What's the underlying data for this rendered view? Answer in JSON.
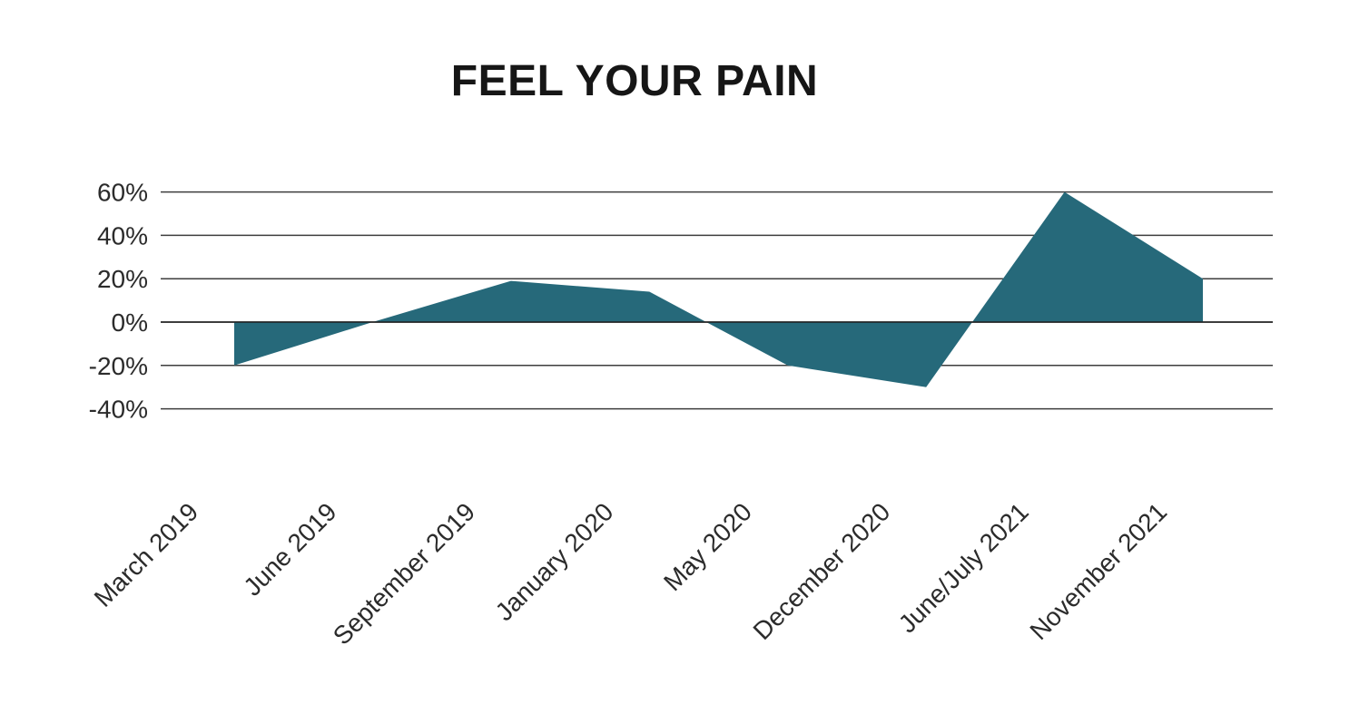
{
  "chart_data": {
    "type": "area",
    "title": "FEEL YOUR PAIN",
    "categories": [
      "March 2019",
      "June 2019",
      "September 2019",
      "January 2020",
      "May 2020",
      "December 2020",
      "June/July 2021",
      "November 2021"
    ],
    "values": [
      -20,
      0,
      19,
      14,
      -20,
      -30,
      60,
      20
    ],
    "value_unit": "percent",
    "baseline": 0,
    "y_ticks": [
      60,
      40,
      20,
      0,
      -20,
      -40
    ],
    "y_tick_labels": [
      "60%",
      "40%",
      "20%",
      "0%",
      "-20%",
      "-40%"
    ],
    "ylim": [
      -40,
      60
    ],
    "xlabel": "",
    "ylabel": "",
    "grid": "horizontal",
    "legend": "none",
    "x_label_rotation_deg": -45,
    "colors": {
      "area_fill": "#26697a",
      "gridline": "#3e3e3e",
      "zero_axis_line": "#1f1f1f",
      "axis_label": "#2b2b2b",
      "title": "#161616",
      "background": "#ffffff"
    }
  }
}
